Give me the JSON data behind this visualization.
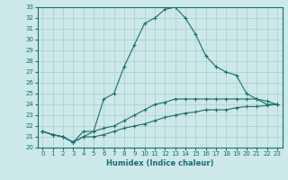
{
  "title": "",
  "xlabel": "Humidex (Indice chaleur)",
  "background_color": "#cce8e8",
  "grid_color": "#aacccc",
  "line_color": "#1a6e6e",
  "xlim": [
    -0.5,
    23.5
  ],
  "ylim": [
    20,
    33
  ],
  "xticks": [
    0,
    1,
    2,
    3,
    4,
    5,
    6,
    7,
    8,
    9,
    10,
    11,
    12,
    13,
    14,
    15,
    16,
    17,
    18,
    19,
    20,
    21,
    22,
    23
  ],
  "yticks": [
    20,
    21,
    22,
    23,
    24,
    25,
    26,
    27,
    28,
    29,
    30,
    31,
    32,
    33
  ],
  "line1_x": [
    0,
    1,
    2,
    3,
    4,
    5,
    6,
    7,
    8,
    9,
    10,
    11,
    12,
    13,
    14,
    15,
    16,
    17,
    18,
    19,
    20,
    21,
    22,
    23
  ],
  "line1_y": [
    21.5,
    21.2,
    21.0,
    20.5,
    21.0,
    21.5,
    24.5,
    25.0,
    27.5,
    29.5,
    31.5,
    32.0,
    32.8,
    33.0,
    32.0,
    30.5,
    28.5,
    27.5,
    27.0,
    26.7,
    25.0,
    24.5,
    24.3,
    24.0
  ],
  "line2_x": [
    0,
    1,
    2,
    3,
    4,
    5,
    6,
    7,
    8,
    9,
    10,
    11,
    12,
    13,
    14,
    15,
    16,
    17,
    18,
    19,
    20,
    21,
    22,
    23
  ],
  "line2_y": [
    21.5,
    21.2,
    21.0,
    20.5,
    21.5,
    21.5,
    21.8,
    22.0,
    22.5,
    23.0,
    23.5,
    24.0,
    24.2,
    24.5,
    24.5,
    24.5,
    24.5,
    24.5,
    24.5,
    24.5,
    24.5,
    24.5,
    24.0,
    24.0
  ],
  "line3_x": [
    0,
    1,
    2,
    3,
    4,
    5,
    6,
    7,
    8,
    9,
    10,
    11,
    12,
    13,
    14,
    15,
    16,
    17,
    18,
    19,
    20,
    21,
    22,
    23
  ],
  "line3_y": [
    21.5,
    21.2,
    21.0,
    20.5,
    21.0,
    21.0,
    21.2,
    21.5,
    21.8,
    22.0,
    22.2,
    22.5,
    22.8,
    23.0,
    23.2,
    23.3,
    23.5,
    23.5,
    23.5,
    23.7,
    23.8,
    23.8,
    23.9,
    24.0
  ],
  "xlabel_fontsize": 6,
  "tick_fontsize": 5
}
